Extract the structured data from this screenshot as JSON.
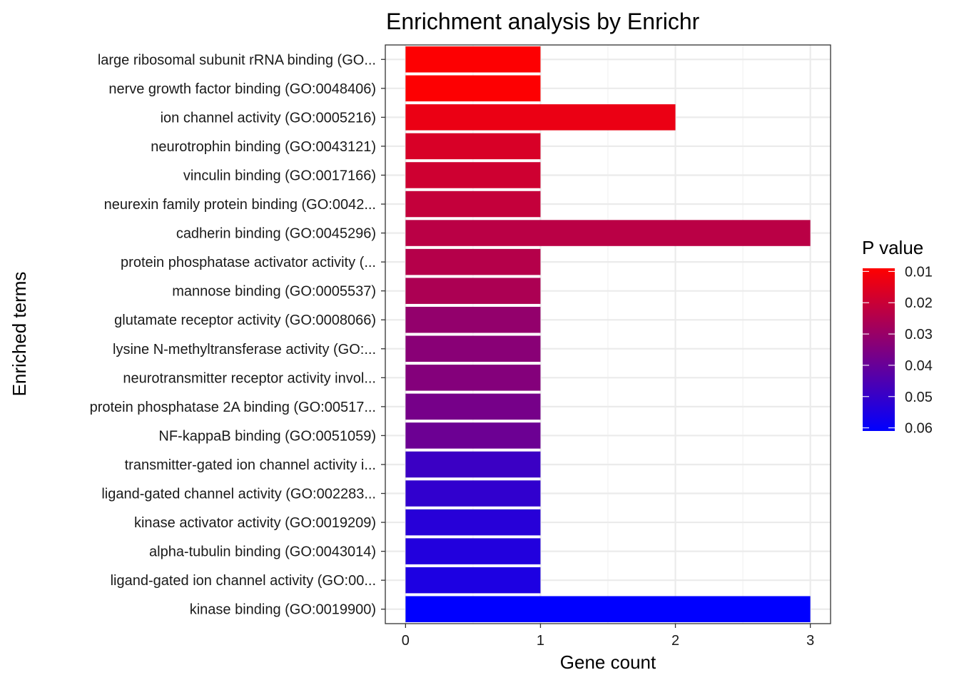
{
  "chart_data": {
    "type": "bar",
    "orientation": "horizontal",
    "title": "Enrichment analysis by Enrichr",
    "xlabel": "Gene count",
    "ylabel": "Enriched terms",
    "xlim": [
      -0.15,
      3.15
    ],
    "xticks": [
      0,
      1,
      2,
      3
    ],
    "grid": true,
    "legend": {
      "title": "P value",
      "position": "right",
      "ticks": [
        "0.01",
        "0.02",
        "0.03",
        "0.04",
        "0.05",
        "0.06"
      ],
      "tick_values": [
        0.01,
        0.02,
        0.03,
        0.04,
        0.05,
        0.06
      ],
      "range": [
        0.009,
        0.061
      ],
      "low_color": "#ff0000",
      "high_color": "#0000ff"
    },
    "categories": [
      "large ribosomal subunit rRNA binding (GO...",
      "nerve growth factor binding (GO:0048406)",
      "ion channel activity (GO:0005216)",
      "neurotrophin binding (GO:0043121)",
      "vinculin binding (GO:0017166)",
      "neurexin family protein binding (GO:0042...",
      "cadherin binding (GO:0045296)",
      "protein phosphatase activator activity (...",
      "mannose binding (GO:0005537)",
      "glutamate receptor activity (GO:0008066)",
      "lysine N-methyltransferase activity (GO:...",
      "neurotransmitter receptor activity invol...",
      "protein phosphatase 2A binding (GO:00517...",
      "NF-kappaB binding (GO:0051059)",
      "transmitter-gated ion channel activity i...",
      "ligand-gated channel activity (GO:002283...",
      "kinase activator activity (GO:0019209)",
      "alpha-tubulin binding (GO:0043014)",
      "ligand-gated ion channel activity (GO:00...",
      "kinase binding (GO:0019900)"
    ],
    "values": [
      1,
      1,
      2,
      1,
      1,
      1,
      3,
      1,
      1,
      1,
      1,
      1,
      1,
      1,
      1,
      1,
      1,
      1,
      1,
      3
    ],
    "pvalues": [
      0.0095,
      0.0095,
      0.013,
      0.017,
      0.019,
      0.021,
      0.023,
      0.024,
      0.026,
      0.031,
      0.033,
      0.034,
      0.037,
      0.039,
      0.049,
      0.051,
      0.053,
      0.054,
      0.055,
      0.061
    ]
  }
}
